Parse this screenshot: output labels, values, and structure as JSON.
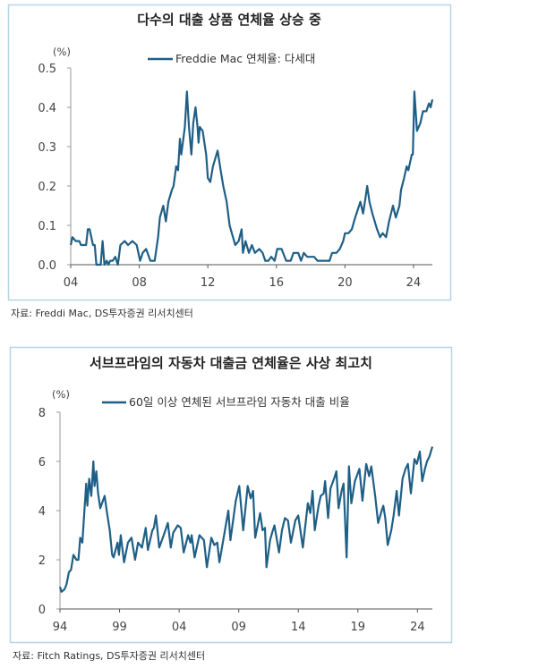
{
  "colors": {
    "line": "#1f5f86",
    "border": "#b5d6e6",
    "axis": "#999999"
  },
  "chart_data": [
    {
      "type": "line",
      "title": "다수의 대출 상품 연체율 상승 중",
      "ylabel": "(%)",
      "xlabel": "",
      "legend": "Freddie Mac 연체율: 다세대",
      "legend_position": "top-center",
      "source": "자료: Freddi Mac, DS투자증권 리서치센터",
      "xlim": [
        2004,
        2025.1
      ],
      "ylim": [
        0,
        0.5
      ],
      "yticks": [
        0,
        0.1,
        0.2,
        0.3,
        0.4,
        0.5
      ],
      "ytick_labels": [
        "0.0",
        "0.1",
        "0.2",
        "0.3",
        "0.4",
        "0.5"
      ],
      "xticks": [
        2004,
        2008,
        2012,
        2016,
        2020,
        2024
      ],
      "xtick_labels": [
        "04",
        "08",
        "12",
        "16",
        "20",
        "24"
      ],
      "series": [
        {
          "name": "Freddie Mac 연체율: 다세대",
          "points": [
            [
              2004.0,
              0.05
            ],
            [
              2004.1,
              0.07
            ],
            [
              2004.3,
              0.06
            ],
            [
              2004.5,
              0.06
            ],
            [
              2004.6,
              0.05
            ],
            [
              2004.9,
              0.05
            ],
            [
              2005.0,
              0.09
            ],
            [
              2005.1,
              0.09
            ],
            [
              2005.3,
              0.05
            ],
            [
              2005.4,
              0.05
            ],
            [
              2005.5,
              0.0
            ],
            [
              2005.75,
              0.0
            ],
            [
              2005.86,
              0.06
            ],
            [
              2005.97,
              0.0
            ],
            [
              2006.1,
              0.01
            ],
            [
              2006.2,
              0.0
            ],
            [
              2006.3,
              0.01
            ],
            [
              2006.45,
              0.01
            ],
            [
              2006.6,
              0.02
            ],
            [
              2006.75,
              0.0
            ],
            [
              2006.9,
              0.05
            ],
            [
              2007.15,
              0.06
            ],
            [
              2007.35,
              0.05
            ],
            [
              2007.6,
              0.06
            ],
            [
              2007.85,
              0.05
            ],
            [
              2008.05,
              0.01
            ],
            [
              2008.2,
              0.03
            ],
            [
              2008.4,
              0.04
            ],
            [
              2008.65,
              0.01
            ],
            [
              2008.9,
              0.01
            ],
            [
              2009.1,
              0.07
            ],
            [
              2009.2,
              0.12
            ],
            [
              2009.4,
              0.15
            ],
            [
              2009.55,
              0.11
            ],
            [
              2009.7,
              0.16
            ],
            [
              2009.9,
              0.19
            ],
            [
              2010.0,
              0.2
            ],
            [
              2010.15,
              0.25
            ],
            [
              2010.26,
              0.24
            ],
            [
              2010.37,
              0.32
            ],
            [
              2010.45,
              0.28
            ],
            [
              2010.57,
              0.32
            ],
            [
              2010.66,
              0.35
            ],
            [
              2010.78,
              0.44
            ],
            [
              2010.9,
              0.35
            ],
            [
              2011.04,
              0.28
            ],
            [
              2011.15,
              0.36
            ],
            [
              2011.28,
              0.4
            ],
            [
              2011.4,
              0.35
            ],
            [
              2011.46,
              0.31
            ],
            [
              2011.53,
              0.35
            ],
            [
              2011.7,
              0.34
            ],
            [
              2011.9,
              0.28
            ],
            [
              2012.0,
              0.22
            ],
            [
              2012.14,
              0.21
            ],
            [
              2012.3,
              0.25
            ],
            [
              2012.57,
              0.29
            ],
            [
              2012.75,
              0.24
            ],
            [
              2012.9,
              0.2
            ],
            [
              2013.1,
              0.16
            ],
            [
              2013.27,
              0.1
            ],
            [
              2013.4,
              0.08
            ],
            [
              2013.6,
              0.05
            ],
            [
              2013.8,
              0.06
            ],
            [
              2013.97,
              0.09
            ],
            [
              2014.05,
              0.03
            ],
            [
              2014.2,
              0.06
            ],
            [
              2014.4,
              0.03
            ],
            [
              2014.57,
              0.05
            ],
            [
              2014.75,
              0.03
            ],
            [
              2015.0,
              0.04
            ],
            [
              2015.2,
              0.03
            ],
            [
              2015.35,
              0.01
            ],
            [
              2015.53,
              0.01
            ],
            [
              2015.7,
              0.02
            ],
            [
              2015.9,
              0.01
            ],
            [
              2016.05,
              0.04
            ],
            [
              2016.3,
              0.04
            ],
            [
              2016.57,
              0.01
            ],
            [
              2016.83,
              0.01
            ],
            [
              2017.0,
              0.03
            ],
            [
              2017.27,
              0.03
            ],
            [
              2017.44,
              0.01
            ],
            [
              2017.6,
              0.03
            ],
            [
              2017.8,
              0.02
            ],
            [
              2018.2,
              0.02
            ],
            [
              2018.4,
              0.01
            ],
            [
              2019.1,
              0.01
            ],
            [
              2019.25,
              0.03
            ],
            [
              2019.5,
              0.03
            ],
            [
              2019.7,
              0.04
            ],
            [
              2019.9,
              0.06
            ],
            [
              2020.0,
              0.08
            ],
            [
              2020.2,
              0.08
            ],
            [
              2020.4,
              0.09
            ],
            [
              2020.6,
              0.12
            ],
            [
              2020.75,
              0.14
            ],
            [
              2020.9,
              0.16
            ],
            [
              2021.06,
              0.13
            ],
            [
              2021.2,
              0.17
            ],
            [
              2021.3,
              0.2
            ],
            [
              2021.43,
              0.16
            ],
            [
              2021.6,
              0.13
            ],
            [
              2021.87,
              0.09
            ],
            [
              2022.05,
              0.07
            ],
            [
              2022.2,
              0.08
            ],
            [
              2022.4,
              0.07
            ],
            [
              2022.57,
              0.11
            ],
            [
              2022.8,
              0.15
            ],
            [
              2022.97,
              0.12
            ],
            [
              2023.18,
              0.15
            ],
            [
              2023.27,
              0.19
            ],
            [
              2023.45,
              0.22
            ],
            [
              2023.6,
              0.25
            ],
            [
              2023.7,
              0.24
            ],
            [
              2023.9,
              0.28
            ],
            [
              2023.96,
              0.28
            ],
            [
              2024.05,
              0.44
            ],
            [
              2024.2,
              0.34
            ],
            [
              2024.4,
              0.36
            ],
            [
              2024.55,
              0.39
            ],
            [
              2024.75,
              0.39
            ],
            [
              2024.9,
              0.41
            ],
            [
              2025.0,
              0.4
            ],
            [
              2025.1,
              0.42
            ]
          ]
        }
      ]
    },
    {
      "type": "line",
      "title": "서브프라임의 자동차 대출금 연체율은 사상 최고치",
      "ylabel": "(%)",
      "xlabel": "",
      "legend": "60일 이상 연체된 서브프라임 자동차 대출 비율",
      "legend_position": "top-center",
      "source": "자료: Fitch Ratings, DS투자증권 리서치센터",
      "xlim": [
        1994,
        2025.25
      ],
      "ylim": [
        0,
        8
      ],
      "yticks": [
        0,
        2,
        4,
        6,
        8
      ],
      "ytick_labels": [
        "0",
        "2",
        "4",
        "6",
        "8"
      ],
      "xticks": [
        1994,
        1999,
        2004,
        2009,
        2014,
        2019,
        2024
      ],
      "xtick_labels": [
        "94",
        "99",
        "04",
        "09",
        "14",
        "19",
        "24"
      ],
      "series": [
        {
          "name": "60일 이상 연체된 서브프라임 자동차 대출 비율",
          "points": [
            [
              1994.0,
              0.9
            ],
            [
              1994.13,
              0.7
            ],
            [
              1994.38,
              0.8
            ],
            [
              1994.55,
              1.0
            ],
            [
              1994.75,
              1.5
            ],
            [
              1994.93,
              1.6
            ],
            [
              1995.13,
              2.2
            ],
            [
              1995.38,
              2.0
            ],
            [
              1995.55,
              2.0
            ],
            [
              1995.7,
              2.9
            ],
            [
              1995.88,
              2.7
            ],
            [
              1996.05,
              4.0
            ],
            [
              1996.2,
              5.1
            ],
            [
              1996.3,
              4.2
            ],
            [
              1996.45,
              5.3
            ],
            [
              1996.63,
              4.6
            ],
            [
              1996.8,
              6.0
            ],
            [
              1996.9,
              5.0
            ],
            [
              1997.05,
              5.6
            ],
            [
              1997.2,
              4.7
            ],
            [
              1997.38,
              4.1
            ],
            [
              1997.75,
              4.6
            ],
            [
              1997.95,
              3.9
            ],
            [
              1998.18,
              3.2
            ],
            [
              1998.38,
              2.2
            ],
            [
              1998.5,
              2.1
            ],
            [
              1998.83,
              2.7
            ],
            [
              1998.95,
              2.2
            ],
            [
              1999.1,
              3.0
            ],
            [
              1999.38,
              1.9
            ],
            [
              1999.7,
              2.7
            ],
            [
              2000.0,
              2.9
            ],
            [
              2000.3,
              2.0
            ],
            [
              2000.55,
              2.7
            ],
            [
              2000.88,
              2.5
            ],
            [
              2001.2,
              3.3
            ],
            [
              2001.38,
              2.4
            ],
            [
              2001.75,
              3.2
            ],
            [
              2001.88,
              3.3
            ],
            [
              2002.05,
              3.8
            ],
            [
              2002.33,
              2.5
            ],
            [
              2002.63,
              2.9
            ],
            [
              2003.05,
              3.5
            ],
            [
              2003.3,
              2.5
            ],
            [
              2003.5,
              3.1
            ],
            [
              2003.88,
              3.4
            ],
            [
              2004.13,
              3.3
            ],
            [
              2004.38,
              2.3
            ],
            [
              2004.75,
              3.0
            ],
            [
              2004.95,
              2.7
            ],
            [
              2005.05,
              3.0
            ],
            [
              2005.3,
              2.1
            ],
            [
              2005.7,
              3.0
            ],
            [
              2006.08,
              2.8
            ],
            [
              2006.33,
              1.7
            ],
            [
              2006.7,
              2.9
            ],
            [
              2006.95,
              2.6
            ],
            [
              2007.2,
              2.7
            ],
            [
              2007.38,
              1.9
            ],
            [
              2007.95,
              3.5
            ],
            [
              2008.13,
              4.0
            ],
            [
              2008.3,
              2.8
            ],
            [
              2008.75,
              4.4
            ],
            [
              2009.05,
              5.0
            ],
            [
              2009.38,
              3.2
            ],
            [
              2009.75,
              5.0
            ],
            [
              2010.0,
              4.5
            ],
            [
              2010.2,
              4.8
            ],
            [
              2010.38,
              2.9
            ],
            [
              2010.8,
              3.9
            ],
            [
              2011.0,
              3.2
            ],
            [
              2011.2,
              3.3
            ],
            [
              2011.33,
              1.7
            ],
            [
              2011.63,
              2.8
            ],
            [
              2011.8,
              3.1
            ],
            [
              2012.0,
              3.4
            ],
            [
              2012.38,
              2.3
            ],
            [
              2012.63,
              3.2
            ],
            [
              2012.88,
              3.7
            ],
            [
              2013.13,
              3.6
            ],
            [
              2013.38,
              2.7
            ],
            [
              2013.75,
              3.6
            ],
            [
              2014.0,
              3.8
            ],
            [
              2014.38,
              2.5
            ],
            [
              2014.8,
              4.3
            ],
            [
              2015.0,
              3.9
            ],
            [
              2015.2,
              4.8
            ],
            [
              2015.38,
              3.2
            ],
            [
              2015.7,
              4.2
            ],
            [
              2015.88,
              4.6
            ],
            [
              2016.13,
              4.7
            ],
            [
              2016.25,
              5.2
            ],
            [
              2016.5,
              3.7
            ],
            [
              2016.7,
              4.9
            ],
            [
              2017.0,
              5.3
            ],
            [
              2017.2,
              5.6
            ],
            [
              2017.38,
              4.1
            ],
            [
              2017.63,
              4.8
            ],
            [
              2017.8,
              5.1
            ],
            [
              2018.05,
              2.1
            ],
            [
              2018.25,
              5.8
            ],
            [
              2018.45,
              4.3
            ],
            [
              2018.75,
              5.2
            ],
            [
              2019.13,
              5.7
            ],
            [
              2019.38,
              4.4
            ],
            [
              2019.7,
              5.9
            ],
            [
              2019.95,
              5.4
            ],
            [
              2020.13,
              5.8
            ],
            [
              2020.45,
              4.6
            ],
            [
              2020.7,
              3.5
            ],
            [
              2021.0,
              4.0
            ],
            [
              2021.13,
              4.2
            ],
            [
              2021.3,
              3.7
            ],
            [
              2021.5,
              2.6
            ],
            [
              2021.8,
              3.2
            ],
            [
              2022.0,
              3.8
            ],
            [
              2022.25,
              4.8
            ],
            [
              2022.45,
              3.8
            ],
            [
              2022.75,
              5.3
            ],
            [
              2023.0,
              5.7
            ],
            [
              2023.2,
              5.9
            ],
            [
              2023.45,
              4.7
            ],
            [
              2023.75,
              6.1
            ],
            [
              2023.95,
              5.9
            ],
            [
              2024.2,
              6.4
            ],
            [
              2024.4,
              5.2
            ],
            [
              2024.63,
              5.7
            ],
            [
              2024.8,
              6.0
            ],
            [
              2025.0,
              6.2
            ],
            [
              2025.25,
              6.6
            ]
          ]
        }
      ]
    }
  ]
}
